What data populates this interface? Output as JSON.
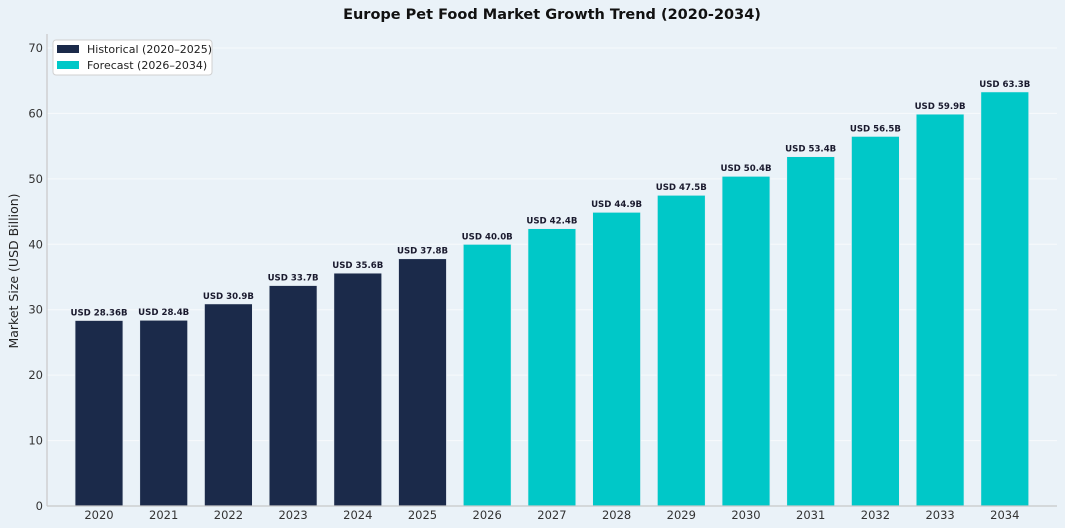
{
  "chart_data": {
    "type": "bar",
    "title": "Europe Pet Food Market Growth Trend (2020-2034)",
    "xlabel": "",
    "ylabel": "Market Size (USD Billion)",
    "ylim": [
      0,
      72
    ],
    "yticks": [
      0,
      10,
      20,
      30,
      40,
      50,
      60,
      70
    ],
    "grid": true,
    "legend_position": "top-left",
    "categories": [
      "2020",
      "2021",
      "2022",
      "2023",
      "2024",
      "2025",
      "2026",
      "2027",
      "2028",
      "2029",
      "2030",
      "2031",
      "2032",
      "2033",
      "2034"
    ],
    "values": [
      28.36,
      28.4,
      30.9,
      33.7,
      35.6,
      37.8,
      40.0,
      42.4,
      44.9,
      47.5,
      50.4,
      53.4,
      56.5,
      59.9,
      63.3
    ],
    "data_labels": [
      "USD 28.36B",
      "USD 28.4B",
      "USD 30.9B",
      "USD 33.7B",
      "USD 35.6B",
      "USD 37.8B",
      "USD 40.0B",
      "USD 42.4B",
      "USD 44.9B",
      "USD 47.5B",
      "USD 50.4B",
      "USD 53.4B",
      "USD 56.5B",
      "USD 59.9B",
      "USD 63.3B"
    ],
    "series_group": [
      "historical",
      "historical",
      "historical",
      "historical",
      "historical",
      "historical",
      "forecast",
      "forecast",
      "forecast",
      "forecast",
      "forecast",
      "forecast",
      "forecast",
      "forecast",
      "forecast"
    ],
    "legend": [
      {
        "key": "historical",
        "label": "Historical (2020–2025)",
        "color": "#1b2a4a"
      },
      {
        "key": "forecast",
        "label": "Forecast (2026–2034)",
        "color": "#00c8c8"
      }
    ]
  }
}
